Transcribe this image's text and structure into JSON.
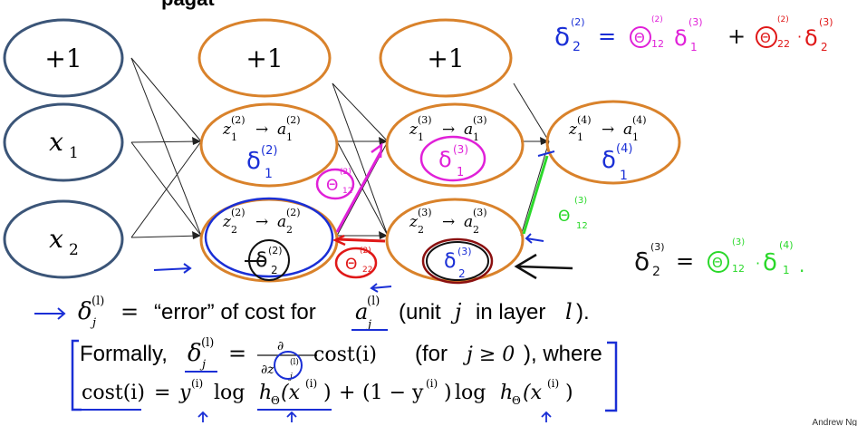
{
  "header_fragment": "pagat",
  "layers": [
    {
      "nodes": [
        {
          "label": "+1"
        },
        {
          "label": "x",
          "sub": "1"
        },
        {
          "label": "x",
          "sub": "2"
        }
      ]
    },
    {
      "nodes": [
        {
          "label": "+1"
        },
        {
          "z": "z",
          "zsub": "1",
          "zsup": "(2)",
          "a": "a",
          "asub": "1",
          "asup": "(2)",
          "delta": "δ",
          "dsup": "(2)",
          "dsub": "1"
        },
        {
          "z": "z",
          "zsub": "2",
          "zsup": "(2)",
          "a": "a",
          "asub": "2",
          "asup": "(2)",
          "delta": "δ",
          "dsup": "(2)",
          "dsub": "2"
        }
      ]
    },
    {
      "nodes": [
        {
          "label": "+1"
        },
        {
          "z": "z",
          "zsub": "1",
          "zsup": "(3)",
          "a": "a",
          "asub": "1",
          "asup": "(3)",
          "delta": "δ",
          "dsup": "(3)",
          "dsub": "1"
        },
        {
          "z": "z",
          "zsub": "2",
          "zsup": "(3)",
          "a": "a",
          "asub": "2",
          "asup": "(3)",
          "delta": "δ",
          "dsup": "(3)",
          "dsub": "2"
        }
      ]
    },
    {
      "nodes": [
        {
          "z": "z",
          "zsub": "1",
          "zsup": "(4)",
          "a": "a",
          "asub": "1",
          "asup": "(4)",
          "delta": "δ",
          "dsup": "(4)",
          "dsub": "1"
        }
      ]
    }
  ],
  "annotations": {
    "top_right_eq": {
      "lhs": "δ",
      "lhs_sup": "(2)",
      "lhs_sub": "2",
      "eq": "=",
      "t1": "Θ",
      "t1_sup": "(2)",
      "t1_sub": "12",
      "t1_d": "δ",
      "t1_dsup": "(3)",
      "t1_dsub": "1",
      "plus": "+",
      "t2": "Θ",
      "t2_sup": "(2)",
      "t2_sub": "22",
      "t2_dot": "·",
      "t2_d": "δ",
      "t2_dsup": "(3)",
      "t2_dsub": "2"
    },
    "right_eq": {
      "lhs": "δ",
      "lhs_sup": "(3)",
      "lhs_sub": "2",
      "eq": "=",
      "t": "Θ",
      "t_sup": "(3)",
      "t_sub": "12",
      "dot": "·",
      "d": "δ",
      "d_sup": "(4)",
      "d_sub": "1",
      "end": "."
    },
    "w_theta_l2": {
      "sym": "Θ",
      "sup": "(2)",
      "sub": "12"
    },
    "w_theta_22": {
      "sym": "Θ",
      "sup": "(2)",
      "sub": "22"
    },
    "w_theta_l3": {
      "sym": "Θ",
      "sup": "(3)",
      "sub": "12"
    }
  },
  "text": {
    "line1_delta": "δ",
    "line1_sup": "(l)",
    "line1_sub": "j",
    "line1_eq": "=",
    "line1_text": "“error” of cost for",
    "line1_a": "a",
    "line1_a_sup": "(l)",
    "line1_a_sub": "j",
    "line1_unit": "(unit",
    "line1_j": "j",
    "line1_in": "in layer",
    "line1_l": "l",
    "line1_close": ").",
    "line2_formally": "Formally,",
    "line2_delta": "δ",
    "line2_sup": "(l)",
    "line2_sub": "j",
    "line2_eq": "=",
    "line2_partial": "∂",
    "line2_dz": "∂z",
    "line2_dz_sup": "(l)",
    "line2_dz_sub": "j",
    "line2_cost": "cost(i)",
    "line2_cond": "(for",
    "line2_cond_math": "j ≥ 0",
    "line2_where": "), where",
    "line3_cost": "cost(i)",
    "line3_eq": "=",
    "line3_y": "y",
    "line3_y_sup": "(i)",
    "line3_log": "log",
    "line3_h": "h",
    "line3_h_sub": "Θ",
    "line3_x": "(x",
    "line3_x_sup": "(i)",
    "line3_x_close": ")",
    "line3_plus": "+",
    "line3_one": "(1 − y",
    "line3_one_sup": "(i)",
    "line3_one_close": ")",
    "line3_log2": "log",
    "line3_h2": "h",
    "line3_h2_sub": "Θ",
    "line3_x2": "(x",
    "line3_x2_sup": "(i)",
    "line3_x2_close": ")"
  },
  "footer": "Andrew Ng",
  "colors": {
    "input_node": "#3b5578",
    "hidden_node": "#d9822b",
    "blue_ink": "#1a2fd6",
    "magenta_ink": "#e020d8",
    "red_ink": "#e01818",
    "green_ink": "#2ad82a",
    "black_ink": "#111111"
  }
}
